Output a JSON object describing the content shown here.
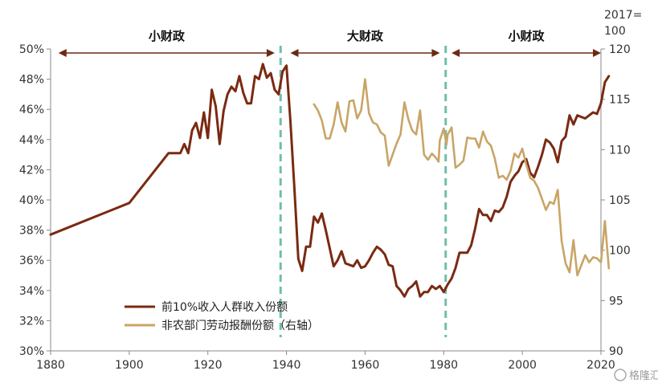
{
  "chart_data": {
    "type": "line",
    "left_axis": {
      "min": 30,
      "max": 50,
      "step": 2,
      "unit": "%"
    },
    "right_axis": {
      "min": 90,
      "max": 120,
      "step": 5,
      "unit_line1": "2017=",
      "unit_line2": "100"
    },
    "x_axis": {
      "min": 1880,
      "max": 2020,
      "ticks": [
        1880,
        1900,
        1920,
        1940,
        1960,
        1980,
        2000,
        2020
      ]
    },
    "periods": [
      {
        "label": "小财政",
        "from": 1882,
        "to": 1937
      },
      {
        "label": "大财政",
        "from": 1941,
        "to": 1979
      },
      {
        "label": "小财政",
        "from": 1982,
        "to": 2020
      }
    ],
    "dividers": [
      1938.5,
      1980.5
    ],
    "series": [
      {
        "name": "前10%收入人群收入份额",
        "axis": "left",
        "color": "#7a2a12",
        "points": [
          [
            1880,
            37.7
          ],
          [
            1900,
            39.8
          ],
          [
            1910,
            43.1
          ],
          [
            1913,
            43.1
          ],
          [
            1914,
            43.7
          ],
          [
            1915,
            43.1
          ],
          [
            1916,
            44.6
          ],
          [
            1917,
            45.1
          ],
          [
            1918,
            44.1
          ],
          [
            1919,
            45.8
          ],
          [
            1920,
            44.1
          ],
          [
            1921,
            47.3
          ],
          [
            1922,
            46.2
          ],
          [
            1923,
            43.7
          ],
          [
            1924,
            45.9
          ],
          [
            1925,
            47.0
          ],
          [
            1926,
            47.5
          ],
          [
            1927,
            47.2
          ],
          [
            1928,
            48.2
          ],
          [
            1929,
            47.1
          ],
          [
            1930,
            46.4
          ],
          [
            1931,
            46.4
          ],
          [
            1932,
            48.2
          ],
          [
            1933,
            48.0
          ],
          [
            1934,
            49.0
          ],
          [
            1935,
            48.1
          ],
          [
            1936,
            48.4
          ],
          [
            1937,
            47.3
          ],
          [
            1938,
            47.0
          ],
          [
            1939,
            48.5
          ],
          [
            1940,
            48.9
          ],
          [
            1941,
            45.2
          ],
          [
            1942,
            40.8
          ],
          [
            1943,
            36.1
          ],
          [
            1944,
            35.3
          ],
          [
            1945,
            36.9
          ],
          [
            1946,
            36.9
          ],
          [
            1947,
            38.9
          ],
          [
            1948,
            38.5
          ],
          [
            1949,
            39.1
          ],
          [
            1950,
            38.0
          ],
          [
            1951,
            36.8
          ],
          [
            1952,
            35.6
          ],
          [
            1953,
            36.0
          ],
          [
            1954,
            36.6
          ],
          [
            1955,
            35.8
          ],
          [
            1956,
            35.7
          ],
          [
            1957,
            35.6
          ],
          [
            1958,
            36.0
          ],
          [
            1959,
            35.5
          ],
          [
            1960,
            35.6
          ],
          [
            1961,
            36.0
          ],
          [
            1962,
            36.5
          ],
          [
            1963,
            36.9
          ],
          [
            1964,
            36.7
          ],
          [
            1965,
            36.4
          ],
          [
            1966,
            35.7
          ],
          [
            1967,
            35.6
          ],
          [
            1968,
            34.3
          ],
          [
            1969,
            34.0
          ],
          [
            1970,
            33.6
          ],
          [
            1971,
            34.1
          ],
          [
            1972,
            34.3
          ],
          [
            1973,
            34.6
          ],
          [
            1974,
            33.6
          ],
          [
            1975,
            33.9
          ],
          [
            1976,
            33.9
          ],
          [
            1977,
            34.3
          ],
          [
            1978,
            34.1
          ],
          [
            1979,
            34.3
          ],
          [
            1980,
            33.9
          ],
          [
            1981,
            34.4
          ],
          [
            1982,
            34.8
          ],
          [
            1983,
            35.5
          ],
          [
            1984,
            36.5
          ],
          [
            1985,
            36.5
          ],
          [
            1986,
            36.5
          ],
          [
            1987,
            37.0
          ],
          [
            1988,
            38.1
          ],
          [
            1989,
            39.4
          ],
          [
            1990,
            39.0
          ],
          [
            1991,
            39.0
          ],
          [
            1992,
            38.6
          ],
          [
            1993,
            39.3
          ],
          [
            1994,
            39.2
          ],
          [
            1995,
            39.5
          ],
          [
            1996,
            40.2
          ],
          [
            1997,
            41.2
          ],
          [
            1998,
            41.6
          ],
          [
            1999,
            41.9
          ],
          [
            2000,
            42.5
          ],
          [
            2001,
            42.7
          ],
          [
            2002,
            41.8
          ],
          [
            2003,
            41.5
          ],
          [
            2004,
            42.2
          ],
          [
            2005,
            43.0
          ],
          [
            2006,
            44.0
          ],
          [
            2007,
            43.8
          ],
          [
            2008,
            43.4
          ],
          [
            2009,
            42.5
          ],
          [
            2010,
            43.9
          ],
          [
            2011,
            44.2
          ],
          [
            2012,
            45.6
          ],
          [
            2013,
            45.0
          ],
          [
            2014,
            45.6
          ],
          [
            2015,
            45.5
          ],
          [
            2016,
            45.4
          ],
          [
            2017,
            45.6
          ],
          [
            2018,
            45.8
          ],
          [
            2019,
            45.7
          ],
          [
            2020,
            46.4
          ],
          [
            2021,
            47.8
          ],
          [
            2022,
            48.2
          ]
        ]
      },
      {
        "name": "非农部门劳动报酬份额（右轴）",
        "axis": "right",
        "color": "#c8a567",
        "points": [
          [
            1947,
            114.5
          ],
          [
            1948,
            113.9
          ],
          [
            1949,
            112.9
          ],
          [
            1950,
            111.1
          ],
          [
            1951,
            111.1
          ],
          [
            1952,
            112.5
          ],
          [
            1953,
            114.7
          ],
          [
            1954,
            112.7
          ],
          [
            1955,
            111.8
          ],
          [
            1956,
            114.8
          ],
          [
            1957,
            114.9
          ],
          [
            1958,
            113.1
          ],
          [
            1959,
            113.9
          ],
          [
            1960,
            117.0
          ],
          [
            1961,
            113.6
          ],
          [
            1962,
            112.7
          ],
          [
            1963,
            112.5
          ],
          [
            1964,
            111.7
          ],
          [
            1965,
            111.4
          ],
          [
            1966,
            108.4
          ],
          [
            1967,
            109.5
          ],
          [
            1968,
            110.6
          ],
          [
            1969,
            111.5
          ],
          [
            1970,
            114.7
          ],
          [
            1971,
            113.0
          ],
          [
            1972,
            111.9
          ],
          [
            1973,
            111.5
          ],
          [
            1974,
            113.9
          ],
          [
            1975,
            109.5
          ],
          [
            1976,
            109.0
          ],
          [
            1977,
            109.6
          ],
          [
            1978,
            109.2
          ],
          [
            1978.7,
            108.8
          ],
          [
            1979,
            110.9
          ],
          [
            1980,
            112.1
          ],
          [
            1980.7,
            110.5
          ],
          [
            1981,
            111.5
          ],
          [
            1982,
            112.2
          ],
          [
            1983,
            108.2
          ],
          [
            1984,
            108.5
          ],
          [
            1985,
            108.9
          ],
          [
            1986,
            111.2
          ],
          [
            1987,
            111.1
          ],
          [
            1988,
            111.1
          ],
          [
            1989,
            110.2
          ],
          [
            1990,
            111.8
          ],
          [
            1991,
            110.8
          ],
          [
            1992,
            110.4
          ],
          [
            1993,
            109.1
          ],
          [
            1994,
            107.2
          ],
          [
            1995,
            107.4
          ],
          [
            1996,
            107.0
          ],
          [
            1997,
            107.9
          ],
          [
            1998,
            109.6
          ],
          [
            1999,
            109.2
          ],
          [
            2000,
            110.1
          ],
          [
            2001,
            108.5
          ],
          [
            2002,
            107.2
          ],
          [
            2003,
            106.9
          ],
          [
            2004,
            106.2
          ],
          [
            2005,
            105.1
          ],
          [
            2006,
            104.0
          ],
          [
            2007,
            104.8
          ],
          [
            2008,
            104.6
          ],
          [
            2009,
            106.0
          ],
          [
            2010,
            100.9
          ],
          [
            2011,
            98.7
          ],
          [
            2012,
            97.8
          ],
          [
            2013,
            101.0
          ],
          [
            2014,
            97.5
          ],
          [
            2015,
            98.5
          ],
          [
            2016,
            99.5
          ],
          [
            2017,
            98.8
          ],
          [
            2018,
            99.3
          ],
          [
            2019,
            99.2
          ],
          [
            2020,
            98.8
          ],
          [
            2021,
            102.9
          ],
          [
            2022,
            98.2
          ]
        ]
      }
    ],
    "watermark": "格隆汇"
  }
}
